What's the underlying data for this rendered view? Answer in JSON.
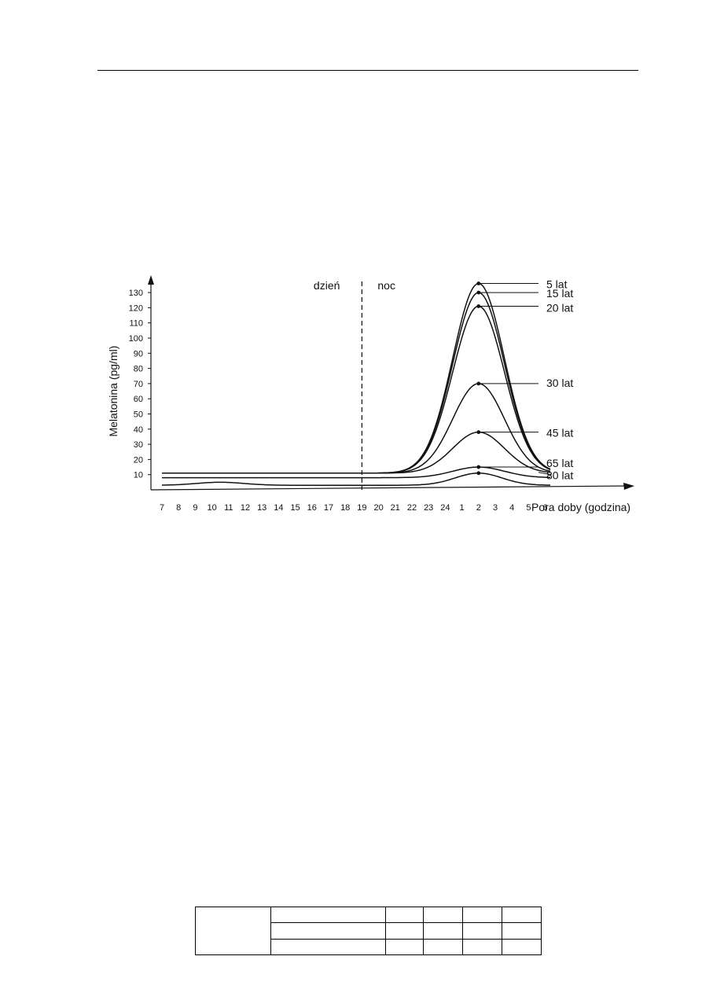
{
  "chart_data": {
    "type": "line",
    "xlabel": "Pora doby (godzina)",
    "ylabel": "Melatonina (pg/ml)",
    "x": [
      "7",
      "8",
      "9",
      "10",
      "11",
      "12",
      "13",
      "14",
      "15",
      "16",
      "17",
      "18",
      "19",
      "20",
      "21",
      "22",
      "23",
      "24",
      "1",
      "2",
      "3",
      "4",
      "5",
      "6"
    ],
    "yticks": [
      10,
      20,
      30,
      40,
      50,
      60,
      70,
      80,
      90,
      100,
      110,
      120,
      130
    ],
    "ylim": [
      0,
      140
    ],
    "regions": {
      "day": "dzień",
      "night": "noc",
      "divider_at": "19"
    },
    "series": [
      {
        "name": "5 lat",
        "baseline": 11,
        "peak": 136,
        "peak_at": "2"
      },
      {
        "name": "15 lat",
        "baseline": 11,
        "peak": 130,
        "peak_at": "2"
      },
      {
        "name": "20 lat",
        "baseline": 11,
        "peak": 121,
        "peak_at": "2"
      },
      {
        "name": "30 lat",
        "baseline": 11,
        "peak": 70,
        "peak_at": "2"
      },
      {
        "name": "45 lat",
        "baseline": 11,
        "peak": 38,
        "peak_at": "2"
      },
      {
        "name": "65 lat",
        "baseline": 8,
        "peak": 15,
        "peak_at": "2"
      },
      {
        "name": "80 lat",
        "baseline": 3,
        "peak": 11,
        "peak_at": "2"
      }
    ]
  },
  "footer_table": {
    "rows": 3,
    "cols": 6
  }
}
